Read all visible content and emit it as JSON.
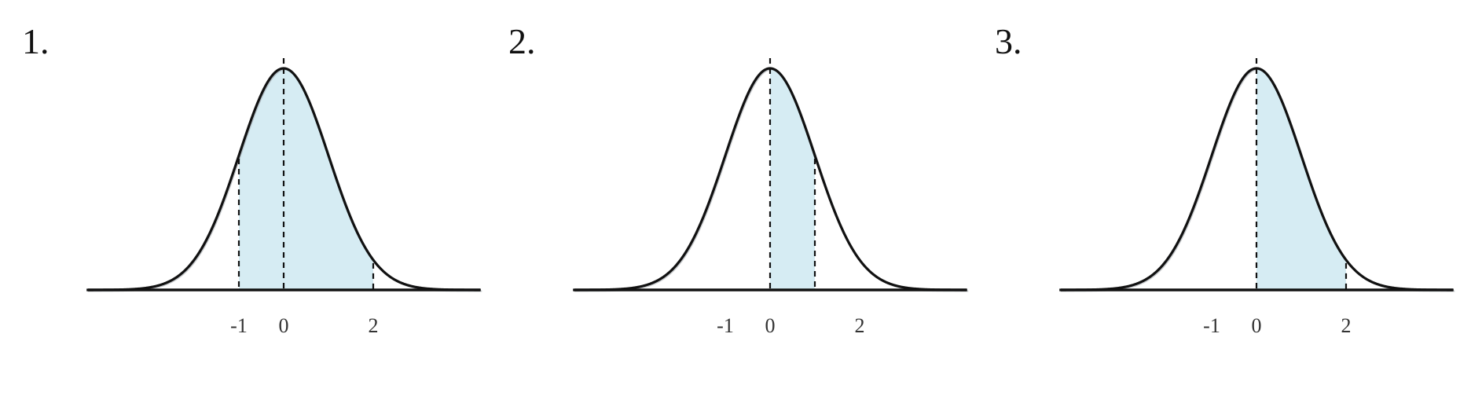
{
  "panels": [
    {
      "label": "1.",
      "shade_from": -1,
      "shade_to": 2,
      "markers": [
        -1,
        0,
        2
      ],
      "tick_labels": [
        {
          "value": -1,
          "text": "-1"
        },
        {
          "value": 0,
          "text": "0"
        },
        {
          "value": 2,
          "text": "2"
        }
      ]
    },
    {
      "label": "2.",
      "shade_from": 0,
      "shade_to": 1,
      "markers": [
        0,
        1
      ],
      "tick_labels": [
        {
          "value": -1,
          "text": "-1"
        },
        {
          "value": 0,
          "text": "0"
        },
        {
          "value": 2,
          "text": "2"
        }
      ]
    },
    {
      "label": "3.",
      "shade_from": 0,
      "shade_to": 2,
      "markers": [
        0,
        2
      ],
      "tick_labels": [
        {
          "value": -1,
          "text": "-1"
        },
        {
          "value": 0,
          "text": "0"
        },
        {
          "value": 2,
          "text": "2"
        }
      ]
    }
  ],
  "colors": {
    "shade": "#d6ecf3",
    "curve": "#111111"
  }
}
